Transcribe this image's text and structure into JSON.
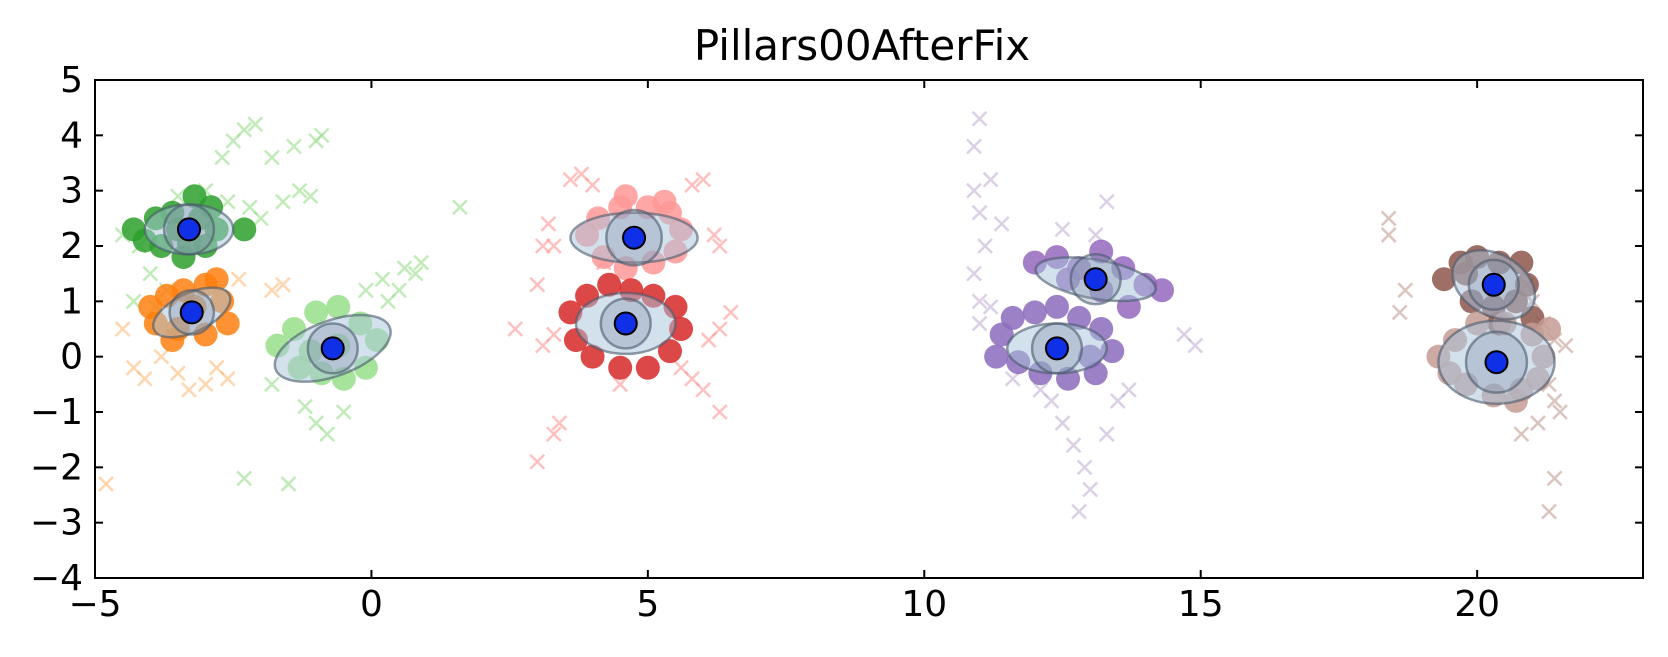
{
  "chart_data": {
    "type": "scatter",
    "title": "Pillars00AfterFix",
    "xlabel": "",
    "ylabel": "",
    "xlim": [
      -5,
      23
    ],
    "ylim": [
      -4,
      5
    ],
    "xticks": [
      -5,
      0,
      5,
      10,
      15,
      20
    ],
    "yticks": [
      -4,
      -3,
      -2,
      -1,
      0,
      1,
      2,
      3,
      4,
      5
    ],
    "xtick_labels": [
      "−5",
      "0",
      "5",
      "10",
      "15",
      "20"
    ],
    "ytick_labels": [
      "−4",
      "−3",
      "−2",
      "−1",
      "0",
      "1",
      "2",
      "3",
      "4",
      "5"
    ],
    "grid": false,
    "legend": "none",
    "center_color": "#1030e8",
    "clusters": [
      {
        "color": "#2ca02c",
        "light_color": "#98df8a",
        "center": [
          -3.3,
          2.3
        ],
        "ellipse": {
          "rx": 0.8,
          "ry": 0.45,
          "angle_deg": 0
        },
        "inner_radius": 0.45,
        "points": [
          [
            -4.3,
            2.3
          ],
          [
            -3.9,
            2.5
          ],
          [
            -3.6,
            2.6
          ],
          [
            -3.2,
            2.9
          ],
          [
            -2.9,
            2.7
          ],
          [
            -2.8,
            2.3
          ],
          [
            -3.0,
            2.0
          ],
          [
            -3.4,
            1.8
          ],
          [
            -3.8,
            2.0
          ],
          [
            -4.1,
            2.1
          ],
          [
            -2.3,
            2.3
          ],
          [
            -3.5,
            2.3
          ],
          [
            -3.1,
            2.5
          ],
          [
            -3.3,
            2.05
          ]
        ],
        "crosses": [
          [
            -4.5,
            2.2
          ],
          [
            -4.2,
            2.0
          ],
          [
            -4.0,
            1.5
          ],
          [
            -3.7,
            1.2
          ],
          [
            -3.5,
            2.9
          ],
          [
            -3.0,
            3.0
          ],
          [
            -2.7,
            3.6
          ],
          [
            -2.5,
            3.9
          ],
          [
            -2.3,
            4.1
          ],
          [
            -2.1,
            4.2
          ],
          [
            -1.8,
            3.6
          ],
          [
            -1.4,
            3.8
          ],
          [
            -1.0,
            3.9
          ],
          [
            -0.9,
            4.0
          ],
          [
            -2.0,
            2.5
          ],
          [
            -1.6,
            2.8
          ],
          [
            -1.3,
            3.0
          ],
          [
            -2.6,
            2.8
          ],
          [
            -4.3,
            1.0
          ],
          [
            -3.9,
            0.9
          ],
          [
            -2.2,
            2.7
          ],
          [
            -1.1,
            2.9
          ]
        ]
      },
      {
        "color": "#ff7f0e",
        "light_color": "#ffbb78",
        "center": [
          -3.25,
          0.8
        ],
        "ellipse": {
          "rx": 0.75,
          "ry": 0.35,
          "angle_deg": 25
        },
        "inner_radius": 0.4,
        "points": [
          [
            -4.0,
            0.9
          ],
          [
            -3.7,
            1.1
          ],
          [
            -3.4,
            1.2
          ],
          [
            -3.0,
            1.3
          ],
          [
            -2.7,
            1.0
          ],
          [
            -2.6,
            0.6
          ],
          [
            -3.0,
            0.4
          ],
          [
            -3.5,
            0.5
          ],
          [
            -3.9,
            0.6
          ],
          [
            -3.2,
            0.9
          ],
          [
            -2.8,
            1.4
          ],
          [
            -3.6,
            0.3
          ]
        ],
        "crosses": [
          [
            -4.3,
            -0.2
          ],
          [
            -4.1,
            -0.4
          ],
          [
            -3.8,
            0.0
          ],
          [
            -3.5,
            -0.3
          ],
          [
            -3.3,
            -0.6
          ],
          [
            -3.0,
            -0.5
          ],
          [
            -2.8,
            -0.2
          ],
          [
            -2.6,
            -0.4
          ],
          [
            -1.8,
            1.2
          ],
          [
            -1.6,
            1.3
          ],
          [
            -4.5,
            0.5
          ],
          [
            -4.8,
            -2.3
          ],
          [
            -2.4,
            1.4
          ]
        ]
      },
      {
        "color": "#98df8a",
        "light_color": "#98df8a",
        "center": [
          -0.7,
          0.15
        ],
        "ellipse": {
          "rx": 1.1,
          "ry": 0.5,
          "angle_deg": 20
        },
        "inner_radius": 0.45,
        "points": [
          [
            -1.7,
            0.2
          ],
          [
            -1.4,
            0.5
          ],
          [
            -1.0,
            0.8
          ],
          [
            -0.6,
            0.9
          ],
          [
            -0.2,
            0.6
          ],
          [
            0.1,
            0.3
          ],
          [
            -0.1,
            -0.2
          ],
          [
            -0.5,
            -0.4
          ],
          [
            -0.9,
            -0.3
          ],
          [
            -1.3,
            -0.2
          ],
          [
            -0.6,
            0.2
          ],
          [
            -1.1,
            0.1
          ]
        ],
        "crosses": [
          [
            0.3,
            1.0
          ],
          [
            0.5,
            1.2
          ],
          [
            0.8,
            1.5
          ],
          [
            0.9,
            1.7
          ],
          [
            0.6,
            1.6
          ],
          [
            0.2,
            1.4
          ],
          [
            -0.1,
            1.2
          ],
          [
            -1.2,
            -0.9
          ],
          [
            -1.0,
            -1.2
          ],
          [
            -0.8,
            -1.4
          ],
          [
            -0.5,
            -1.0
          ],
          [
            -2.3,
            -2.2
          ],
          [
            -1.5,
            -2.3
          ],
          [
            1.6,
            2.7
          ],
          [
            -1.8,
            -0.5
          ]
        ]
      },
      {
        "color": "#ff9896",
        "light_color": "#ff9896",
        "center": [
          4.75,
          2.15
        ],
        "ellipse": {
          "rx": 1.15,
          "ry": 0.45,
          "angle_deg": 0
        },
        "inner_radius": 0.5,
        "points": [
          [
            3.9,
            2.2
          ],
          [
            4.1,
            2.5
          ],
          [
            4.5,
            2.7
          ],
          [
            4.6,
            2.9
          ],
          [
            5.0,
            2.7
          ],
          [
            5.4,
            2.6
          ],
          [
            5.6,
            2.3
          ],
          [
            5.5,
            1.9
          ],
          [
            5.1,
            1.7
          ],
          [
            4.6,
            1.6
          ],
          [
            4.2,
            1.8
          ],
          [
            5.3,
            2.8
          ]
        ],
        "crosses": [
          [
            3.6,
            3.2
          ],
          [
            3.8,
            3.3
          ],
          [
            4.0,
            3.1
          ],
          [
            5.8,
            3.1
          ],
          [
            6.0,
            3.2
          ],
          [
            6.2,
            2.2
          ],
          [
            6.3,
            2.0
          ],
          [
            3.2,
            2.4
          ],
          [
            3.3,
            2.0
          ],
          [
            6.5,
            0.8
          ],
          [
            2.6,
            0.5
          ]
        ]
      },
      {
        "color": "#d62728",
        "light_color": "#ff9896",
        "center": [
          4.6,
          0.6
        ],
        "ellipse": {
          "rx": 0.9,
          "ry": 0.55,
          "angle_deg": 0
        },
        "inner_radius": 0.45,
        "points": [
          [
            3.6,
            0.8
          ],
          [
            3.9,
            1.1
          ],
          [
            4.3,
            1.3
          ],
          [
            4.7,
            1.2
          ],
          [
            5.1,
            1.1
          ],
          [
            5.5,
            0.9
          ],
          [
            5.6,
            0.5
          ],
          [
            5.4,
            0.1
          ],
          [
            5.0,
            -0.2
          ],
          [
            4.5,
            -0.2
          ],
          [
            4.0,
            0.0
          ],
          [
            3.7,
            0.3
          ],
          [
            4.6,
            0.6
          ]
        ],
        "crosses": [
          [
            5.6,
            -0.2
          ],
          [
            5.8,
            -0.4
          ],
          [
            6.0,
            -0.6
          ],
          [
            6.1,
            0.3
          ],
          [
            6.3,
            0.5
          ],
          [
            3.3,
            0.4
          ],
          [
            3.1,
            0.2
          ],
          [
            3.0,
            1.3
          ],
          [
            3.1,
            2.0
          ],
          [
            3.4,
            -1.2
          ],
          [
            3.3,
            -1.4
          ],
          [
            3.0,
            -1.9
          ],
          [
            6.3,
            -1.0
          ],
          [
            4.5,
            -0.5
          ],
          [
            4.2,
            1.7
          ]
        ]
      },
      {
        "color": "#9467bd",
        "light_color": "#c5b0d5",
        "center": [
          13.1,
          1.4
        ],
        "ellipse": {
          "rx": 1.1,
          "ry": 0.35,
          "angle_deg": -10
        },
        "inner_radius": 0.45,
        "points": [
          [
            12.0,
            1.7
          ],
          [
            12.4,
            1.8
          ],
          [
            12.8,
            1.6
          ],
          [
            13.2,
            1.9
          ],
          [
            13.6,
            1.6
          ],
          [
            14.0,
            1.3
          ],
          [
            14.3,
            1.2
          ],
          [
            13.7,
            0.9
          ],
          [
            13.2,
            1.2
          ],
          [
            12.6,
            1.4
          ]
        ],
        "crosses": [
          [
            11.0,
            4.3
          ],
          [
            10.9,
            3.8
          ],
          [
            10.9,
            3.0
          ],
          [
            11.0,
            2.6
          ],
          [
            11.1,
            2.0
          ],
          [
            10.9,
            1.5
          ],
          [
            11.0,
            1.0
          ],
          [
            11.2,
            3.2
          ],
          [
            11.4,
            2.4
          ],
          [
            11.0,
            0.6
          ],
          [
            13.3,
            2.8
          ],
          [
            13.1,
            2.2
          ],
          [
            12.5,
            2.3
          ],
          [
            14.7,
            0.4
          ],
          [
            14.9,
            0.2
          ]
        ]
      },
      {
        "color": "#8c6bbd",
        "light_color": "#c5b0d5",
        "center": [
          12.4,
          0.15
        ],
        "ellipse": {
          "rx": 0.9,
          "ry": 0.45,
          "angle_deg": 0
        },
        "inner_radius": 0.45,
        "points": [
          [
            11.4,
            0.4
          ],
          [
            11.6,
            0.7
          ],
          [
            12.0,
            0.8
          ],
          [
            12.4,
            0.9
          ],
          [
            12.8,
            0.7
          ],
          [
            13.2,
            0.5
          ],
          [
            13.4,
            0.1
          ],
          [
            13.1,
            -0.3
          ],
          [
            12.6,
            -0.4
          ],
          [
            12.1,
            -0.3
          ],
          [
            11.7,
            -0.1
          ],
          [
            11.3,
            0.0
          ],
          [
            13.0,
            0.0
          ]
        ],
        "crosses": [
          [
            12.3,
            -0.8
          ],
          [
            12.5,
            -1.2
          ],
          [
            12.7,
            -1.6
          ],
          [
            12.9,
            -2.0
          ],
          [
            13.0,
            -2.4
          ],
          [
            12.8,
            -2.8
          ],
          [
            13.3,
            -1.4
          ],
          [
            13.5,
            -0.8
          ],
          [
            13.7,
            -0.6
          ],
          [
            12.1,
            -0.6
          ],
          [
            11.6,
            -0.4
          ],
          [
            11.2,
            0.9
          ]
        ]
      },
      {
        "color": "#8c564b",
        "light_color": "#c49c94",
        "center": [
          20.3,
          1.3
        ],
        "ellipse": {
          "rx": 0.8,
          "ry": 0.55,
          "angle_deg": -30
        },
        "inner_radius": 0.45,
        "points": [
          [
            19.4,
            1.4
          ],
          [
            19.7,
            1.7
          ],
          [
            20.0,
            1.8
          ],
          [
            20.4,
            1.7
          ],
          [
            20.8,
            1.7
          ],
          [
            20.9,
            1.3
          ],
          [
            20.7,
            1.0
          ],
          [
            20.3,
            0.9
          ],
          [
            19.9,
            1.0
          ],
          [
            20.4,
            0.6
          ],
          [
            21.0,
            0.7
          ],
          [
            19.8,
            1.5
          ]
        ],
        "crosses": [
          [
            18.4,
            2.5
          ],
          [
            18.4,
            2.2
          ],
          [
            18.7,
            1.2
          ],
          [
            18.6,
            0.8
          ],
          [
            20.9,
            1.3
          ],
          [
            21.0,
            1.0
          ],
          [
            21.2,
            0.6
          ],
          [
            21.4,
            0.3
          ]
        ]
      },
      {
        "color": "#c49c94",
        "light_color": "#c49c94",
        "center": [
          20.35,
          -0.1
        ],
        "ellipse": {
          "rx": 1.05,
          "ry": 0.75,
          "angle_deg": 0
        },
        "inner_radius": 0.55,
        "points": [
          [
            19.3,
            0.0
          ],
          [
            19.6,
            0.3
          ],
          [
            20.0,
            0.6
          ],
          [
            20.5,
            0.6
          ],
          [
            21.0,
            0.4
          ],
          [
            21.2,
            0.0
          ],
          [
            21.1,
            -0.4
          ],
          [
            20.7,
            -0.8
          ],
          [
            20.3,
            -0.7
          ],
          [
            19.8,
            -0.5
          ],
          [
            19.5,
            -0.3
          ],
          [
            21.3,
            0.5
          ],
          [
            20.8,
            -0.6
          ]
        ],
        "crosses": [
          [
            21.3,
            -0.5
          ],
          [
            21.4,
            -0.8
          ],
          [
            21.5,
            -1.0
          ],
          [
            21.1,
            -1.2
          ],
          [
            20.8,
            -1.4
          ],
          [
            21.4,
            -2.2
          ],
          [
            21.3,
            -2.8
          ],
          [
            21.6,
            0.2
          ]
        ]
      }
    ]
  }
}
